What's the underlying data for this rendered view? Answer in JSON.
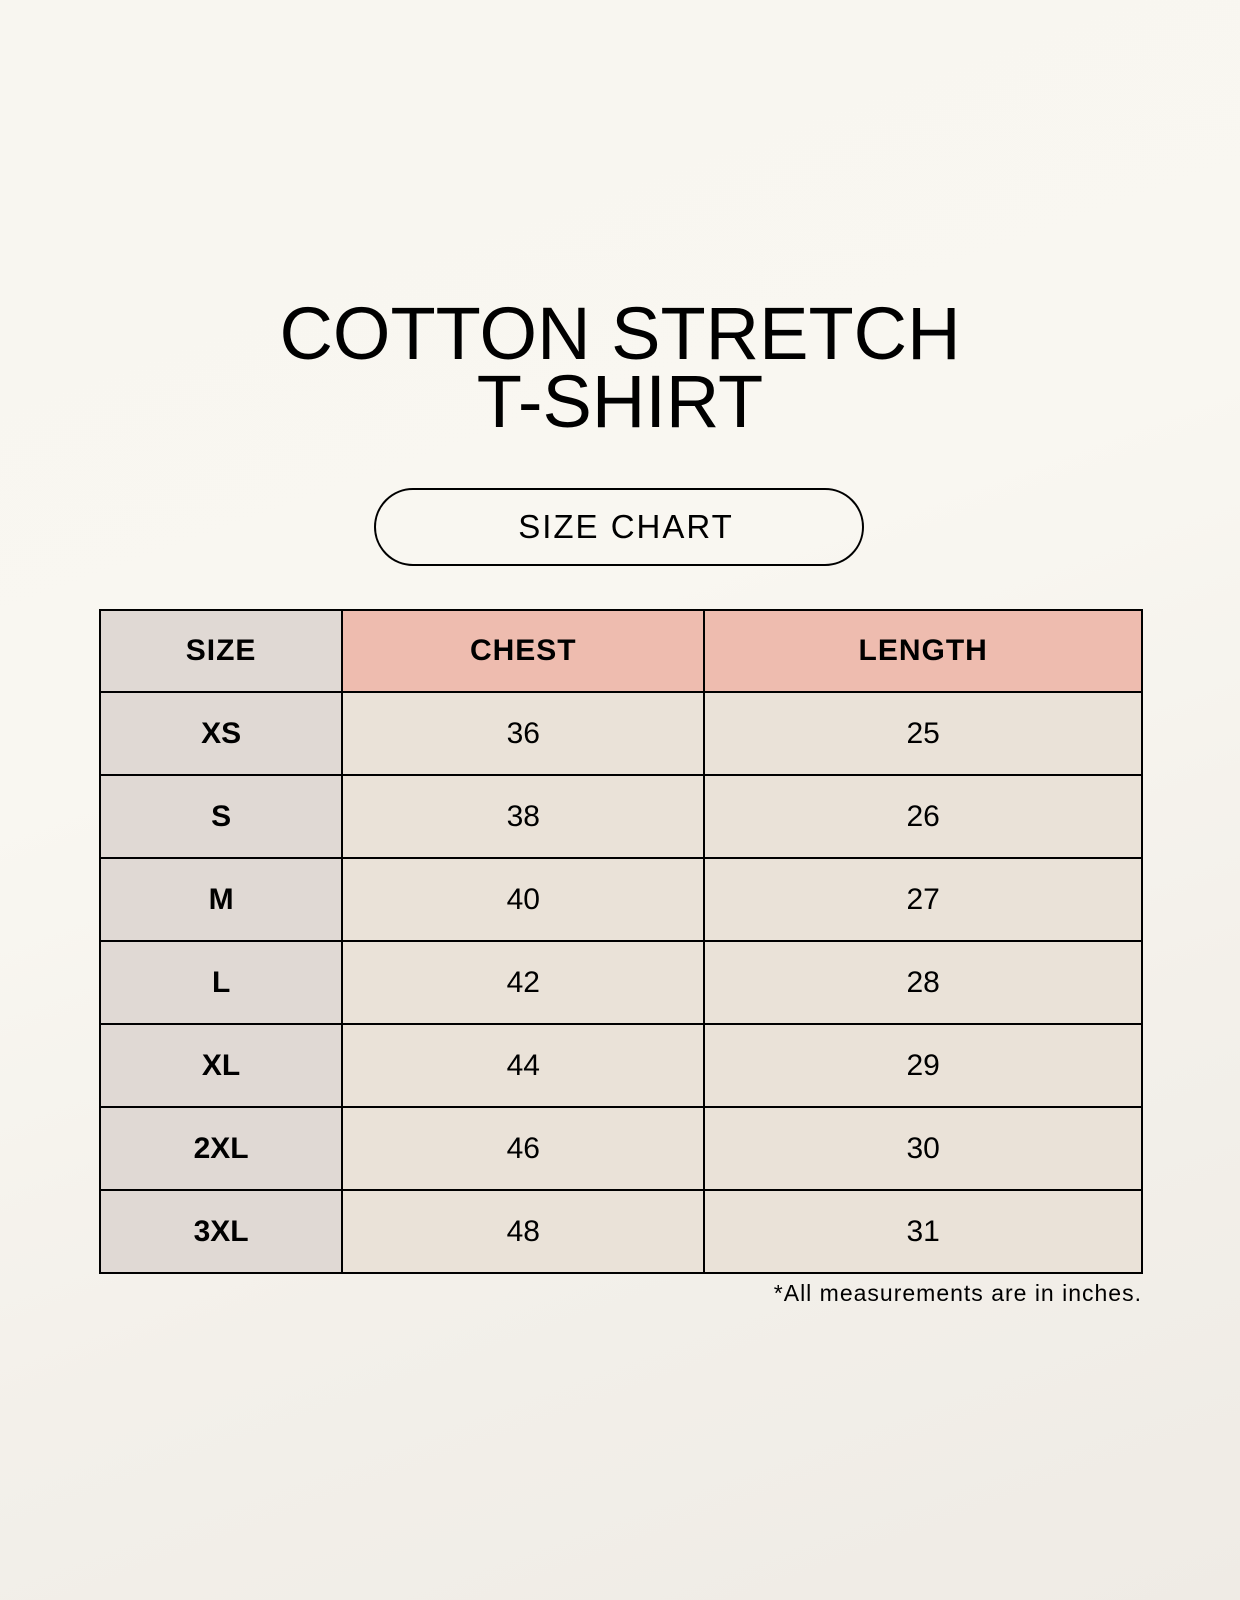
{
  "title_line1": "COTTON STRETCH",
  "title_line2": "T-SHIRT",
  "subtitle": "SIZE CHART",
  "table": {
    "headers": [
      "SIZE",
      "CHEST",
      "LENGTH"
    ],
    "rows": [
      [
        "XS",
        "36",
        "25"
      ],
      [
        "S",
        "38",
        "26"
      ],
      [
        "M",
        "40",
        "27"
      ],
      [
        "L",
        "42",
        "28"
      ],
      [
        "XL",
        "44",
        "29"
      ],
      [
        "2XL",
        "46",
        "30"
      ],
      [
        "3XL",
        "48",
        "31"
      ]
    ]
  },
  "footnote": "*All measurements are in inches.",
  "colors": {
    "size_column": "#e0d9d4",
    "header_accent": "#eebcaf",
    "cell": "#eae2d8"
  }
}
